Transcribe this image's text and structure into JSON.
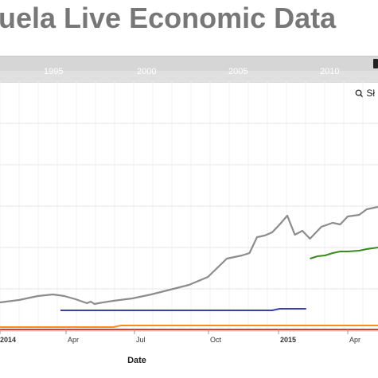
{
  "page": {
    "title": "uela Live Economic Data"
  },
  "navigator": {
    "years": [
      "1995",
      "2000",
      "2005",
      "2010"
    ]
  },
  "zoom_tool": {
    "icon": "magnifier-icon",
    "label": "Sł"
  },
  "chart_data": {
    "type": "line",
    "title": "",
    "xlabel": "Date",
    "ylabel": "",
    "grid": true,
    "x_ticks": [
      "2014",
      "Apr",
      "Jul",
      "Oct",
      "2015",
      "Apr"
    ],
    "series": [
      {
        "color": "#8c8c8c",
        "x": [
          0,
          0.05,
          0.1,
          0.14,
          0.17,
          0.2,
          0.23,
          0.24,
          0.25,
          0.26,
          0.3,
          0.35,
          0.4,
          0.45,
          0.5,
          0.55,
          0.6,
          0.62,
          0.64,
          0.66,
          0.68,
          0.7,
          0.72,
          0.74,
          0.76,
          0.78,
          0.8,
          0.82,
          0.85,
          0.88,
          0.9,
          0.92,
          0.95,
          0.97,
          1.0
        ],
        "values": [
          380,
          377,
          372,
          370,
          372,
          376,
          381,
          379,
          382,
          381,
          378,
          375,
          370,
          364,
          358,
          348,
          325,
          323,
          321,
          318,
          298,
          296,
          292,
          282,
          271,
          295,
          290,
          300,
          285,
          280,
          282,
          272,
          270,
          263,
          260
        ]
      },
      {
        "color": "#3a3fb0",
        "x": [
          0.16,
          0.2,
          0.4,
          0.6,
          0.72,
          0.74,
          0.81
        ],
        "values": [
          390,
          390,
          390,
          390,
          390,
          388,
          388
        ]
      },
      {
        "color": "#3a8a1e",
        "x": [
          0.82,
          0.84,
          0.86,
          0.88,
          0.9,
          0.92,
          0.95,
          0.97,
          1.0
        ],
        "values": [
          325,
          322,
          321,
          318,
          316,
          316,
          315,
          313,
          311
        ]
      },
      {
        "color": "#ff8c1a",
        "x": [
          0,
          0.3,
          0.32,
          0.6,
          1.0
        ],
        "values": [
          411,
          411,
          409,
          409,
          409
        ]
      },
      {
        "color": "#e23b2e",
        "x": [
          0,
          1.0
        ],
        "values": [
          414,
          414
        ]
      }
    ]
  }
}
